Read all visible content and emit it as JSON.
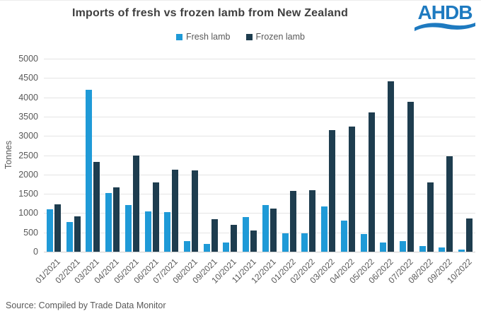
{
  "title": "Imports of fresh vs frozen lamb from New Zealand",
  "logo": {
    "text": "AHDB",
    "color": "#1e7ac0"
  },
  "source": "Source: Compiled by Trade Data Monitor",
  "colors": {
    "fresh": "#1f9ad7",
    "frozen": "#1e3d4f",
    "axis_text": "#595959",
    "gridline": "#e4e4e4",
    "title_text": "#3f3f3f"
  },
  "chart_data": {
    "type": "bar",
    "title": "Imports of fresh vs frozen lamb from New Zealand",
    "xlabel": "",
    "ylabel": "Tonnes",
    "ylim": [
      0,
      5000
    ],
    "ytick_step": 500,
    "grid": true,
    "legend_position": "top",
    "categories": [
      "01/2021",
      "02/2021",
      "03/2021",
      "04/2021",
      "05/2021",
      "06/2021",
      "07/2021",
      "08/2021",
      "09/2021",
      "10/2021",
      "11/2021",
      "12/2021",
      "01/2022",
      "02/2022",
      "03/2022",
      "04/2022",
      "05/2022",
      "06/2022",
      "07/2022",
      "08/2022",
      "09/2022",
      "10/2022"
    ],
    "series": [
      {
        "name": "Fresh lamb",
        "color": "#1f9ad7",
        "values": [
          1100,
          770,
          4200,
          1520,
          1200,
          1040,
          1030,
          270,
          200,
          240,
          900,
          1200,
          480,
          480,
          1180,
          800,
          460,
          240,
          280,
          140,
          110,
          50
        ]
      },
      {
        "name": "Frozen lamb",
        "color": "#1e3d4f",
        "values": [
          1230,
          920,
          2320,
          1670,
          2490,
          1800,
          2130,
          2100,
          850,
          690,
          550,
          1110,
          1570,
          1590,
          3150,
          3240,
          3600,
          4410,
          3890,
          1800,
          2480,
          860
        ]
      }
    ]
  }
}
